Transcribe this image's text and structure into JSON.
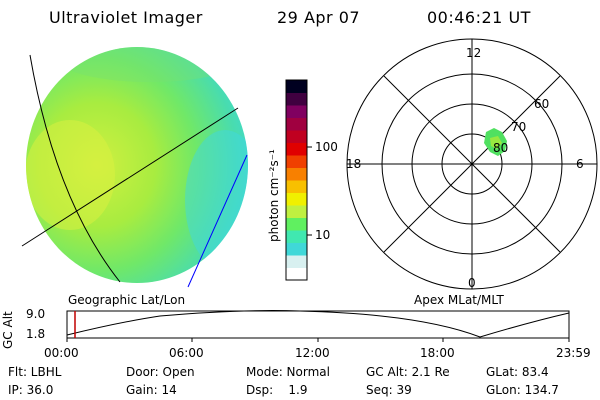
{
  "header": {
    "instrument": "Ultraviolet Imager",
    "date": "29 Apr 07",
    "time": "00:46:21 UT"
  },
  "colorbar": {
    "unit_label": "photon cm⁻²s⁻¹",
    "ticks": [
      "100",
      "10"
    ],
    "colors": [
      "#ffffff",
      "#d8f0f0",
      "#40d8d8",
      "#40e8b0",
      "#60f060",
      "#c0f040",
      "#f0f000",
      "#f8c000",
      "#f88000",
      "#f04000",
      "#e00000",
      "#c00020",
      "#a00040",
      "#800060",
      "#400040",
      "#000020"
    ]
  },
  "image_panel": {
    "caption": "Geographic Lat/Lon"
  },
  "polar_plot": {
    "caption": "Apex MLat/MLT",
    "mlt_labels": [
      "12",
      "18",
      "6",
      "0"
    ],
    "lat_labels": [
      "60",
      "70",
      "80"
    ]
  },
  "altitude_plot": {
    "ylabel": "GC Alt",
    "y_ticks": [
      "9.0",
      "1.8"
    ],
    "x_ticks": [
      "00:00",
      "06:00",
      "12:00",
      "18:00",
      "23:59"
    ],
    "marker_color": "#c00000"
  },
  "status": {
    "row1": {
      "flt": "Flt: LBHL",
      "door": "Door: Open",
      "mode": "Mode: Normal",
      "gcalt": "GC Alt: 2.1 Re",
      "glat": "GLat: 83.4"
    },
    "row2": {
      "ip": "IP: 36.0",
      "gain": "Gain: 14",
      "dsp": "Dsp:    1.9",
      "seq": "Seq: 39",
      "glon": "GLon: 134.7"
    }
  }
}
